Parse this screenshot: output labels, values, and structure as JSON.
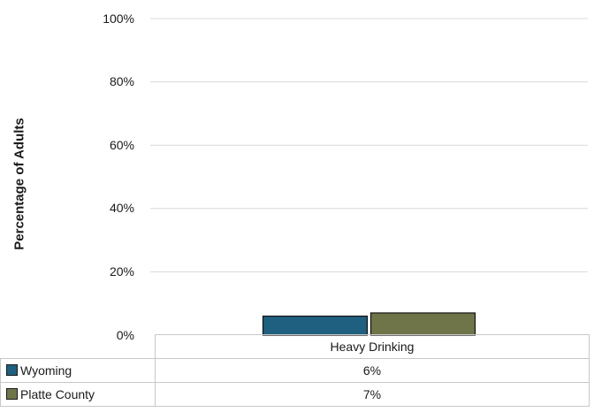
{
  "chart_data": {
    "type": "bar",
    "ylabel": "Percentage of Adults",
    "ylim": [
      0,
      100
    ],
    "yticks": [
      "0%",
      "20%",
      "40%",
      "60%",
      "80%",
      "100%"
    ],
    "yticks_values": [
      0,
      20,
      40,
      60,
      80,
      100
    ],
    "grid": true,
    "categories": [
      "Heavy Drinking"
    ],
    "series": [
      {
        "name": "Wyoming",
        "color": "#1f5f80",
        "values": [
          6
        ],
        "labels": [
          "6%"
        ]
      },
      {
        "name": "Platte County",
        "color": "#6f7549",
        "values": [
          7
        ],
        "labels": [
          "7%"
        ]
      }
    ]
  }
}
